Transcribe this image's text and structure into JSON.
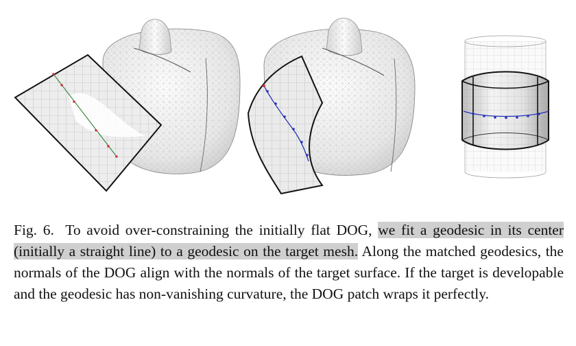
{
  "caption": {
    "label": "Fig. 6.",
    "text_part1": "To avoid over-constraining the initially flat DOG,",
    "text_highlight": "we fit a geodesic in its center (initially a straight line) to a geodesic on the target mesh.",
    "text_part2": "Along the matched geodesics, the normals of the DOG align with the normals of the target surface. If the target is developable and the geodesic has non-vanishing curvature, the DOG patch wraps it perfectly."
  },
  "colors": {
    "geodesic_red": "#d0363c",
    "geodesic_green": "#3f8a45",
    "geodesic_blue": "#2633b8",
    "highlight": "#cfcfcf"
  },
  "panels": [
    {
      "name": "flat-dog-before-fit"
    },
    {
      "name": "dog-after-fit"
    },
    {
      "name": "dog-wrapped-cylinder"
    }
  ]
}
